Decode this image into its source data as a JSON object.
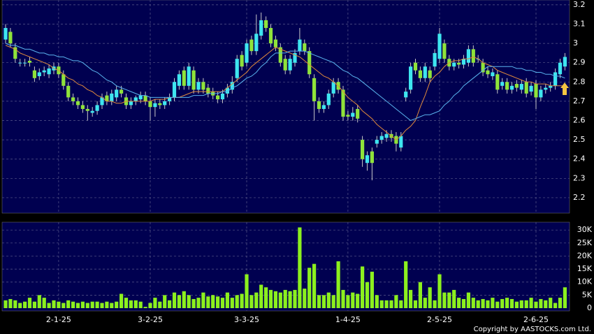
{
  "chart_data": {
    "type": "candlestick",
    "categories": [
      null,
      null,
      null,
      null,
      null,
      null,
      null,
      null,
      null,
      null,
      null,
      "2-1-25",
      null,
      null,
      null,
      null,
      null,
      null,
      null,
      null,
      null,
      null,
      null,
      null,
      null,
      null,
      null,
      null,
      null,
      null,
      "3-2-25",
      null,
      null,
      null,
      null,
      null,
      null,
      null,
      null,
      null,
      null,
      null,
      null,
      null,
      null,
      null,
      null,
      null,
      null,
      null,
      "3-3-25",
      null,
      null,
      null,
      null,
      null,
      null,
      null,
      null,
      null,
      null,
      null,
      null,
      null,
      null,
      null,
      null,
      null,
      null,
      null,
      null,
      "1-4-25",
      null,
      null,
      null,
      null,
      null,
      null,
      null,
      null,
      null,
      null,
      null,
      null,
      null,
      null,
      null,
      null,
      null,
      null,
      "2-5-25",
      null,
      null,
      null,
      null,
      null,
      null,
      null,
      null,
      null,
      null,
      null,
      null,
      null,
      null,
      null,
      null,
      null,
      null,
      null,
      "2-6-25",
      null,
      null,
      null,
      null,
      null,
      null
    ],
    "open": [
      3.02,
      3.06,
      2.98,
      2.9,
      2.9,
      2.91,
      2.86,
      2.83,
      2.85,
      2.84,
      2.86,
      2.88,
      2.84,
      2.78,
      2.72,
      2.7,
      2.68,
      2.66,
      2.64,
      2.65,
      2.68,
      2.73,
      2.7,
      2.72,
      2.76,
      2.72,
      2.68,
      2.7,
      2.71,
      2.73,
      2.7,
      2.67,
      2.69,
      2.68,
      2.7,
      2.72,
      2.78,
      2.86,
      2.78,
      2.86,
      2.76,
      2.8,
      2.77,
      2.75,
      2.73,
      2.71,
      2.74,
      2.76,
      2.82,
      2.94,
      2.9,
      3.02,
      2.96,
      3.04,
      3.12,
      3.08,
      3.02,
      2.98,
      2.92,
      2.86,
      2.9,
      2.96,
      3.0,
      2.96,
      2.82,
      2.7,
      2.66,
      2.68,
      2.74,
      2.8,
      2.76,
      2.63,
      2.62,
      2.66,
      2.5,
      2.38,
      2.44,
      2.48,
      2.5,
      2.51,
      2.53,
      2.52,
      2.46,
      2.72,
      2.76,
      2.9,
      2.86,
      2.82,
      2.86,
      2.88,
      2.92,
      3.0,
      2.92,
      2.88,
      2.9,
      2.89,
      2.9,
      2.97,
      2.92,
      2.9,
      2.86,
      2.83,
      2.84,
      2.78,
      2.8,
      2.76,
      2.79,
      2.76,
      2.8,
      2.75,
      2.79,
      2.72,
      2.76,
      2.77,
      2.78,
      2.84,
      2.88
    ],
    "high": [
      3.1,
      3.08,
      3.0,
      2.92,
      2.92,
      2.93,
      2.88,
      2.87,
      2.88,
      2.89,
      2.9,
      2.9,
      2.86,
      2.8,
      2.74,
      2.72,
      2.7,
      2.68,
      2.67,
      2.7,
      2.74,
      2.75,
      2.76,
      2.78,
      2.78,
      2.74,
      2.72,
      2.73,
      2.75,
      2.75,
      2.72,
      2.71,
      2.71,
      2.72,
      2.74,
      2.82,
      2.86,
      2.88,
      2.9,
      2.88,
      2.82,
      2.82,
      2.79,
      2.77,
      2.75,
      2.76,
      2.79,
      2.83,
      2.94,
      2.96,
      3.02,
      3.04,
      3.15,
      3.16,
      3.14,
      3.1,
      3.04,
      3.0,
      2.94,
      2.94,
      2.97,
      3.08,
      3.02,
      2.98,
      2.84,
      2.72,
      2.7,
      2.76,
      2.82,
      2.82,
      2.78,
      2.65,
      2.67,
      2.68,
      2.52,
      2.44,
      2.46,
      2.52,
      2.54,
      2.55,
      2.55,
      2.54,
      2.54,
      2.77,
      2.9,
      2.92,
      2.88,
      2.9,
      2.88,
      2.97,
      3.08,
      3.02,
      2.94,
      2.92,
      2.92,
      2.94,
      2.99,
      2.99,
      2.94,
      2.92,
      2.88,
      2.87,
      2.86,
      2.82,
      2.82,
      2.8,
      2.81,
      2.81,
      2.82,
      2.8,
      2.81,
      2.78,
      2.79,
      2.8,
      2.87,
      2.92,
      2.95
    ],
    "low": [
      3.0,
      2.98,
      2.9,
      2.88,
      2.88,
      2.88,
      2.8,
      2.81,
      2.83,
      2.82,
      2.84,
      2.82,
      2.76,
      2.7,
      2.68,
      2.66,
      2.64,
      2.6,
      2.62,
      2.63,
      2.66,
      2.68,
      2.68,
      2.7,
      2.72,
      2.66,
      2.66,
      2.68,
      2.69,
      2.68,
      2.6,
      2.62,
      2.66,
      2.66,
      2.68,
      2.7,
      2.76,
      2.76,
      2.76,
      2.74,
      2.74,
      2.74,
      2.72,
      2.71,
      2.69,
      2.69,
      2.72,
      2.74,
      2.8,
      2.86,
      2.88,
      2.94,
      2.94,
      3.02,
      3.06,
      2.98,
      2.96,
      2.88,
      2.84,
      2.84,
      2.88,
      2.94,
      2.94,
      2.82,
      2.6,
      2.64,
      2.64,
      2.66,
      2.72,
      2.74,
      2.6,
      2.6,
      2.6,
      2.59,
      2.36,
      2.34,
      2.29,
      2.46,
      2.48,
      2.49,
      2.49,
      2.44,
      2.44,
      2.7,
      2.74,
      2.84,
      2.8,
      2.8,
      2.8,
      2.86,
      2.9,
      2.9,
      2.86,
      2.86,
      2.87,
      2.87,
      2.88,
      2.88,
      2.9,
      2.83,
      2.82,
      2.81,
      2.74,
      2.76,
      2.74,
      2.74,
      2.75,
      2.74,
      2.72,
      2.73,
      2.66,
      2.7,
      2.74,
      2.75,
      2.76,
      2.82,
      2.86
    ],
    "close": [
      3.08,
      3.0,
      2.92,
      2.9,
      2.9,
      2.9,
      2.82,
      2.85,
      2.86,
      2.87,
      2.88,
      2.84,
      2.78,
      2.72,
      2.7,
      2.68,
      2.66,
      2.65,
      2.65,
      2.68,
      2.72,
      2.7,
      2.74,
      2.76,
      2.74,
      2.68,
      2.7,
      2.72,
      2.73,
      2.7,
      2.67,
      2.69,
      2.68,
      2.7,
      2.72,
      2.8,
      2.84,
      2.78,
      2.88,
      2.76,
      2.8,
      2.76,
      2.74,
      2.73,
      2.71,
      2.74,
      2.77,
      2.8,
      2.92,
      2.88,
      3.0,
      2.96,
      3.05,
      3.12,
      3.08,
      3.0,
      2.98,
      2.9,
      2.86,
      2.92,
      2.95,
      3.02,
      2.96,
      2.84,
      2.7,
      2.66,
      2.68,
      2.74,
      2.8,
      2.76,
      2.62,
      2.62,
      2.64,
      2.61,
      2.4,
      2.42,
      2.38,
      2.5,
      2.52,
      2.53,
      2.51,
      2.48,
      2.52,
      2.75,
      2.88,
      2.86,
      2.82,
      2.88,
      2.82,
      2.95,
      3.05,
      2.92,
      2.88,
      2.9,
      2.89,
      2.92,
      2.97,
      2.9,
      2.92,
      2.85,
      2.84,
      2.85,
      2.76,
      2.8,
      2.76,
      2.78,
      2.77,
      2.79,
      2.74,
      2.78,
      2.72,
      2.76,
      2.77,
      2.78,
      2.85,
      2.9,
      2.93
    ],
    "volume": [
      3000,
      3500,
      3000,
      2000,
      2500,
      4000,
      2500,
      5000,
      4000,
      2000,
      3000,
      2500,
      2000,
      3000,
      2500,
      2000,
      2500,
      2000,
      2500,
      2500,
      2000,
      2500,
      2000,
      2500,
      5500,
      4000,
      3000,
      3000,
      2500,
      500,
      2000,
      4000,
      2500,
      5000,
      3000,
      6000,
      5000,
      6500,
      5000,
      3500,
      4000,
      6000,
      4500,
      5000,
      4500,
      4000,
      6000,
      4000,
      5000,
      5500,
      13000,
      5000,
      6000,
      9000,
      8000,
      7000,
      6500,
      6000,
      7000,
      6500,
      7000,
      31000,
      7500,
      15500,
      17000,
      5000,
      5000,
      6000,
      5000,
      18000,
      7000,
      5000,
      6000,
      5500,
      16000,
      10000,
      14000,
      5000,
      3000,
      3000,
      3000,
      5000,
      3000,
      18000,
      7000,
      3000,
      10000,
      4000,
      8000,
      3000,
      13000,
      6000,
      6000,
      7000,
      4000,
      3500,
      6000,
      4000,
      3000,
      3500,
      3000,
      4000,
      2500,
      3500,
      4000,
      3500,
      2500,
      3000,
      3000,
      4000,
      2500,
      3500,
      3000,
      4000,
      2000,
      4000,
      8000
    ],
    "lines": [
      {
        "color": "#e08a3c",
        "values": [
          2.99,
          2.98,
          2.97,
          2.95,
          2.94,
          2.93,
          2.92,
          2.91,
          2.9,
          2.89,
          2.87,
          2.86,
          2.84,
          2.82,
          2.81,
          2.79,
          2.78,
          2.76,
          2.75,
          2.73,
          2.72,
          2.7,
          2.7,
          2.69,
          2.69,
          2.7,
          2.7,
          2.7,
          2.7,
          2.7,
          2.7,
          2.71,
          2.71,
          2.71,
          2.72,
          2.72,
          2.72,
          2.73,
          2.74,
          2.75,
          2.75,
          2.75,
          2.75,
          2.75,
          2.75,
          2.75,
          2.77,
          2.79,
          2.81,
          2.83,
          2.85,
          2.88,
          2.9,
          2.92,
          2.94,
          2.96,
          2.98,
          2.97,
          2.96,
          2.95,
          2.94,
          2.93,
          2.91,
          2.89,
          2.87,
          2.85,
          2.83,
          2.82,
          2.8,
          2.78,
          2.75,
          2.72,
          2.7,
          2.68,
          2.65,
          2.63,
          2.61,
          2.58,
          2.56,
          2.54,
          2.52,
          2.5,
          2.52,
          2.55,
          2.57,
          2.6,
          2.67,
          2.73,
          2.8,
          2.83,
          2.85,
          2.88,
          2.9,
          2.91,
          2.91,
          2.92,
          2.92,
          2.93,
          2.92,
          2.9,
          2.89,
          2.88,
          2.86,
          2.85,
          2.84,
          2.83,
          2.82,
          2.81,
          2.8,
          2.8,
          2.79,
          2.79,
          2.79,
          2.78,
          2.78,
          2.78,
          2.78
        ]
      },
      {
        "color": "#5ab4ee",
        "values": [
          3.0,
          2.99,
          2.99,
          2.98,
          2.97,
          2.97,
          2.96,
          2.95,
          2.95,
          2.94,
          2.94,
          2.93,
          2.93,
          2.92,
          2.91,
          2.91,
          2.9,
          2.88,
          2.86,
          2.85,
          2.83,
          2.81,
          2.8,
          2.78,
          2.77,
          2.76,
          2.75,
          2.74,
          2.73,
          2.73,
          2.72,
          2.72,
          2.72,
          2.72,
          2.72,
          2.72,
          2.72,
          2.72,
          2.72,
          2.73,
          2.73,
          2.73,
          2.74,
          2.74,
          2.74,
          2.75,
          2.75,
          2.77,
          2.78,
          2.8,
          2.82,
          2.83,
          2.85,
          2.88,
          2.9,
          2.93,
          2.95,
          2.95,
          2.95,
          2.96,
          2.96,
          2.96,
          2.96,
          2.95,
          2.94,
          2.93,
          2.92,
          2.91,
          2.9,
          2.88,
          2.86,
          2.85,
          2.83,
          2.82,
          2.8,
          2.78,
          2.76,
          2.74,
          2.72,
          2.7,
          2.68,
          2.66,
          2.64,
          2.62,
          2.6,
          2.61,
          2.62,
          2.63,
          2.63,
          2.64,
          2.65,
          2.68,
          2.7,
          2.73,
          2.75,
          2.78,
          2.8,
          2.82,
          2.84,
          2.86,
          2.88,
          2.88,
          2.88,
          2.88,
          2.88,
          2.88,
          2.87,
          2.87,
          2.86,
          2.86,
          2.85,
          2.85,
          2.84,
          2.84,
          2.83,
          2.83,
          2.82
        ]
      }
    ],
    "up_color": "#3ee6f0",
    "down_color": "#8fe33a",
    "volume_color": "#8cf01e",
    "ylim": [
      2.12,
      3.225
    ],
    "yticks": [
      2.2,
      2.3,
      2.4,
      2.5,
      2.6,
      2.7,
      2.8,
      2.9,
      3,
      3.1,
      3.2
    ],
    "volume_ylim": [
      0,
      33000
    ],
    "volume_yticks": [
      0,
      {
        "value": 5000,
        "label": "5K"
      },
      {
        "value": 10000,
        "label": "10K"
      },
      {
        "value": 15000,
        "label": "15K"
      },
      {
        "value": 20000,
        "label": "20K"
      },
      {
        "value": 25000,
        "label": "25K"
      },
      {
        "value": 30000,
        "label": "30K"
      }
    ],
    "grid": true,
    "copyright": "Copyright by AASTOCKS.com Ltd."
  }
}
